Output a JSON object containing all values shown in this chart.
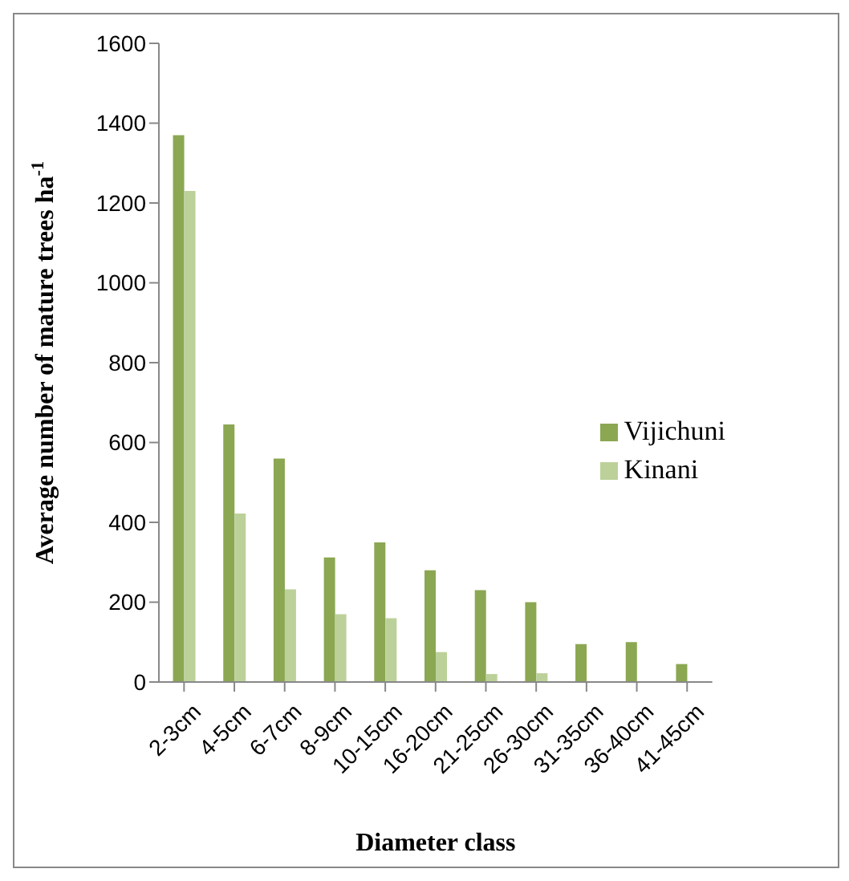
{
  "chart_data": {
    "type": "bar",
    "xlabel": "Diameter class",
    "ylabel": "Average number of mature trees ha$^{-1}$",
    "categories": [
      "2-3cm",
      "4-5cm",
      "6-7cm",
      "8-9cm",
      "10-15cm",
      "16-20cm",
      "21-25cm",
      "26-30cm",
      "31-35cm",
      "36-40cm",
      "41-45cm"
    ],
    "series": [
      {
        "name": "Vijichuni",
        "color": "#8ba752",
        "values": [
          1370,
          645,
          560,
          312,
          350,
          280,
          230,
          200,
          95,
          100,
          45
        ]
      },
      {
        "name": "Kinani",
        "color": "#bcd19a",
        "values": [
          1230,
          422,
          232,
          170,
          160,
          75,
          20,
          22,
          null,
          null,
          0
        ]
      }
    ],
    "ylim": [
      0,
      1600
    ],
    "yticks": [
      0,
      200,
      400,
      600,
      800,
      1000,
      1200,
      1400,
      1600
    ],
    "grid": false,
    "legend": "right"
  }
}
